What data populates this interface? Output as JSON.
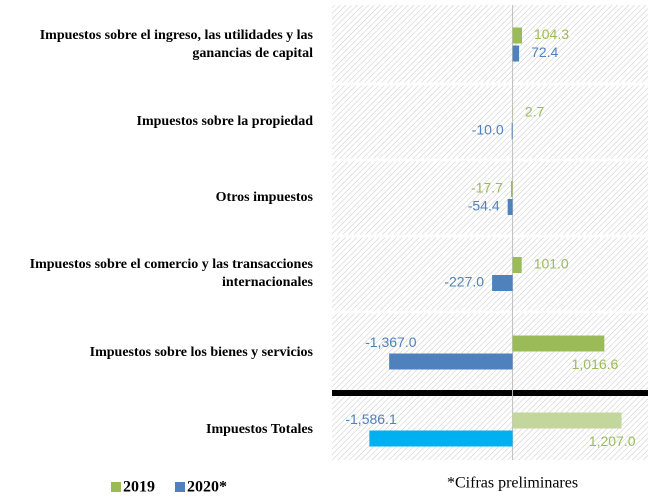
{
  "chart_data": {
    "type": "bar",
    "orientation": "horizontal",
    "categories": [
      "Impuestos sobre el ingreso, las utilidades y las ganancias de capital",
      "Impuestos sobre la propiedad",
      "Otros impuestos",
      "Impuestos sobre el comercio y las transacciones internacionales",
      "Impuestos sobre los bienes y servicios",
      "Impuestos Totales"
    ],
    "series": [
      {
        "name": "2019",
        "color": "#9bbb59",
        "colors": [
          "#9bbb59",
          "#9bbb59",
          "#9bbb59",
          "#9bbb59",
          "#9bbb59",
          "#c3d69b"
        ],
        "values": [
          104.3,
          2.7,
          -17.7,
          101.0,
          1016.6,
          1207.0
        ],
        "value_labels": [
          "104.3",
          "2.7",
          "-17.7",
          "101.0",
          "1,016.6",
          "1,207.0"
        ]
      },
      {
        "name": "2020*",
        "color": "#4f81bd",
        "colors": [
          "#4f81bd",
          "#4f81bd",
          "#4f81bd",
          "#4f81bd",
          "#4f81bd",
          "#00b0f0"
        ],
        "values": [
          72.4,
          -10.0,
          -54.4,
          -227.0,
          -1367.0,
          -1586.1
        ],
        "value_labels": [
          "72.4",
          "-10.0",
          "-54.4",
          "-227.0",
          "-1,367.0",
          "-1,586.1"
        ]
      }
    ],
    "xlim": [
      -2000,
      1500
    ],
    "note": "*Cifras preliminares"
  }
}
